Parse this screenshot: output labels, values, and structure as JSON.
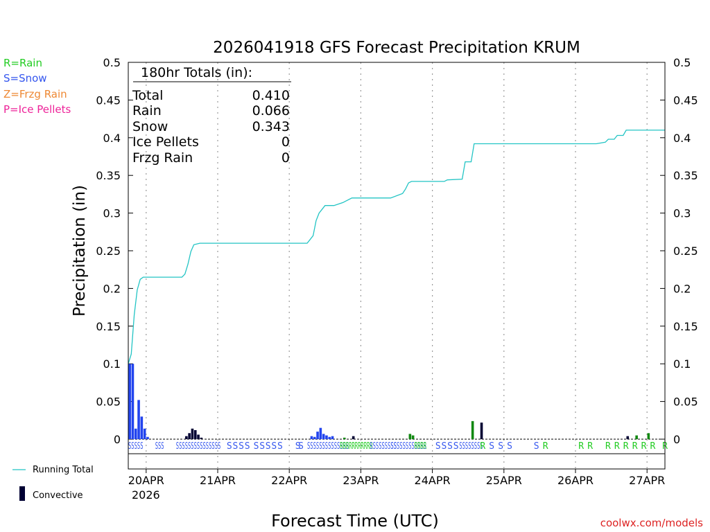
{
  "chart_data": {
    "type": "bar",
    "title": "2026041918 GFS Forecast Precipitation KRUM",
    "xlabel": "Forecast Time (UTC)",
    "ylabel": "Precipitation (in)",
    "ylim": [
      0,
      0.5
    ],
    "x_range_hours": [
      0,
      180
    ],
    "yticks": [
      "0",
      "0.05",
      "0.1",
      "0.15",
      "0.2",
      "0.25",
      "0.3",
      "0.35",
      "0.4",
      "0.45",
      "0.5"
    ],
    "xticks": [
      {
        "hour": 6,
        "label": "20APR"
      },
      {
        "hour": 30,
        "label": "21APR"
      },
      {
        "hour": 54,
        "label": "22APR"
      },
      {
        "hour": 78,
        "label": "23APR"
      },
      {
        "hour": 102,
        "label": "24APR"
      },
      {
        "hour": 126,
        "label": "25APR"
      },
      {
        "hour": 150,
        "label": "26APR"
      },
      {
        "hour": 174,
        "label": "27APR"
      }
    ],
    "year_label": "2026",
    "totals": {
      "header": "180hr Totals (in):",
      "rows": [
        {
          "label": "Total",
          "value": "0.410"
        },
        {
          "label": "Rain",
          "value": "0.066"
        },
        {
          "label": "Snow",
          "value": "0.343"
        },
        {
          "label": "Ice Pellets",
          "value": "0"
        },
        {
          "label": "Frzg Rain",
          "value": "0"
        }
      ]
    },
    "precip_legend": [
      {
        "text": "R=Rain",
        "color": "#22cc22"
      },
      {
        "text": "S=Snow",
        "color": "#3355ee"
      },
      {
        "text": "Z=Frzg Rain",
        "color": "#ee8833"
      },
      {
        "text": "P=Ice Pellets",
        "color": "#ee2299"
      }
    ],
    "series_legend": {
      "running_total": "Running Total",
      "convective": "Convective"
    },
    "credit": "coolwx.com/models",
    "colors": {
      "running": "#22c4c4",
      "snow": "#2244ee",
      "rain": "#118811",
      "convective": "#000033",
      "rain_label": "#22cc22",
      "snow_label": "#3355ee"
    },
    "running_total": [
      [
        0,
        0.1
      ],
      [
        1,
        0.113
      ],
      [
        2,
        0.165
      ],
      [
        3,
        0.198
      ],
      [
        4,
        0.212
      ],
      [
        5,
        0.215
      ],
      [
        18,
        0.215
      ],
      [
        19,
        0.219
      ],
      [
        20,
        0.232
      ],
      [
        21,
        0.249
      ],
      [
        22,
        0.258
      ],
      [
        24,
        0.26
      ],
      [
        60,
        0.26
      ],
      [
        61,
        0.265
      ],
      [
        62,
        0.27
      ],
      [
        63,
        0.29
      ],
      [
        64,
        0.3
      ],
      [
        65,
        0.305
      ],
      [
        66,
        0.31
      ],
      [
        69,
        0.31
      ],
      [
        72,
        0.314
      ],
      [
        73,
        0.316
      ],
      [
        75,
        0.32
      ],
      [
        88,
        0.32
      ],
      [
        92,
        0.326
      ],
      [
        93,
        0.332
      ],
      [
        94,
        0.34
      ],
      [
        95,
        0.342
      ],
      [
        106,
        0.342
      ],
      [
        107,
        0.344
      ],
      [
        112,
        0.345
      ],
      [
        113,
        0.368
      ],
      [
        115,
        0.368
      ],
      [
        116,
        0.392
      ],
      [
        157,
        0.392
      ],
      [
        160,
        0.394
      ],
      [
        161,
        0.398
      ],
      [
        163,
        0.398
      ],
      [
        164,
        0.403
      ],
      [
        166,
        0.403
      ],
      [
        167,
        0.41
      ],
      [
        180,
        0.41
      ]
    ],
    "bars": [
      {
        "h": 0.5,
        "v": 0.1,
        "k": "snow"
      },
      {
        "h": 1.5,
        "v": 0.1,
        "k": "snow"
      },
      {
        "h": 2.5,
        "v": 0.014,
        "k": "snow"
      },
      {
        "h": 3.5,
        "v": 0.052,
        "k": "snow"
      },
      {
        "h": 4.5,
        "v": 0.03,
        "k": "snow"
      },
      {
        "h": 5.5,
        "v": 0.014,
        "k": "snow"
      },
      {
        "h": 6.5,
        "v": 0.003,
        "k": "snow"
      },
      {
        "h": 19.5,
        "v": 0.004,
        "k": "conv"
      },
      {
        "h": 20.5,
        "v": 0.008,
        "k": "conv"
      },
      {
        "h": 21.5,
        "v": 0.014,
        "k": "conv"
      },
      {
        "h": 22.5,
        "v": 0.012,
        "k": "conv"
      },
      {
        "h": 23.5,
        "v": 0.006,
        "k": "conv"
      },
      {
        "h": 24.5,
        "v": 0.002,
        "k": "conv"
      },
      {
        "h": 61.5,
        "v": 0.004,
        "k": "snow"
      },
      {
        "h": 62.5,
        "v": 0.003,
        "k": "snow"
      },
      {
        "h": 63.5,
        "v": 0.01,
        "k": "snow"
      },
      {
        "h": 64.5,
        "v": 0.015,
        "k": "snow"
      },
      {
        "h": 65.5,
        "v": 0.007,
        "k": "snow"
      },
      {
        "h": 66.5,
        "v": 0.005,
        "k": "snow"
      },
      {
        "h": 67.5,
        "v": 0.003,
        "k": "snow"
      },
      {
        "h": 68.5,
        "v": 0.004,
        "k": "snow"
      },
      {
        "h": 72.5,
        "v": 0.002,
        "k": "rain"
      },
      {
        "h": 75.5,
        "v": 0.004,
        "k": "conv"
      },
      {
        "h": 94.5,
        "v": 0.007,
        "k": "rain"
      },
      {
        "h": 95.5,
        "v": 0.005,
        "k": "rain"
      },
      {
        "h": 115.5,
        "v": 0.024,
        "k": "rain"
      },
      {
        "h": 118.5,
        "v": 0.022,
        "k": "conv"
      },
      {
        "h": 167.5,
        "v": 0.004,
        "k": "conv"
      },
      {
        "h": 170.5,
        "v": 0.005,
        "k": "rain"
      },
      {
        "h": 174.5,
        "v": 0.008,
        "k": "rain"
      }
    ],
    "ptype_marks": [
      {
        "h": 0,
        "t": "SSSSS",
        "k": "S"
      },
      {
        "h": 9,
        "t": "SSS",
        "k": "S"
      },
      {
        "h": 16,
        "t": "SSSSSSSSSSSSSSS",
        "k": "S"
      },
      {
        "h": 33,
        "t": "S",
        "k": "S"
      },
      {
        "h": 35,
        "t": "S",
        "k": "S"
      },
      {
        "h": 37,
        "t": "S",
        "k": "S"
      },
      {
        "h": 39,
        "t": "S",
        "k": "S"
      },
      {
        "h": 42,
        "t": "S",
        "k": "S"
      },
      {
        "h": 44,
        "t": "S",
        "k": "S"
      },
      {
        "h": 46,
        "t": "S",
        "k": "S"
      },
      {
        "h": 48,
        "t": "S",
        "k": "S"
      },
      {
        "h": 50,
        "t": "S",
        "k": "S"
      },
      {
        "h": 56,
        "t": "S",
        "k": "S"
      },
      {
        "h": 57,
        "t": "S",
        "k": "S"
      },
      {
        "h": 60,
        "t": "SSSSSSSSSSSSSS",
        "k": "S"
      },
      {
        "h": 71,
        "t": "RRRRRRRRRRR",
        "k": "R"
      },
      {
        "h": 81,
        "t": "SSSSSSSSS",
        "k": "S"
      },
      {
        "h": 88,
        "t": "SSSSSSSSSSSS",
        "k": "S"
      },
      {
        "h": 96,
        "t": "RRRR",
        "k": "R"
      },
      {
        "h": 103,
        "t": "S",
        "k": "S"
      },
      {
        "h": 105,
        "t": "S",
        "k": "S"
      },
      {
        "h": 107,
        "t": "S",
        "k": "S"
      },
      {
        "h": 109,
        "t": "S",
        "k": "S"
      },
      {
        "h": 111,
        "t": "SSSSSSSS",
        "k": "S"
      },
      {
        "h": 118,
        "t": "R",
        "k": "R"
      },
      {
        "h": 121,
        "t": "S",
        "k": "S"
      },
      {
        "h": 124,
        "t": "S",
        "k": "S"
      },
      {
        "h": 127,
        "t": "S",
        "k": "S"
      },
      {
        "h": 136,
        "t": "S",
        "k": "S"
      },
      {
        "h": 139,
        "t": "R",
        "k": "R"
      },
      {
        "h": 151,
        "t": "R",
        "k": "R"
      },
      {
        "h": 154,
        "t": "R",
        "k": "R"
      },
      {
        "h": 160,
        "t": "R",
        "k": "R"
      },
      {
        "h": 163,
        "t": "R",
        "k": "R"
      },
      {
        "h": 166,
        "t": "R",
        "k": "R"
      },
      {
        "h": 169,
        "t": "R",
        "k": "R"
      },
      {
        "h": 172,
        "t": "R",
        "k": "R"
      },
      {
        "h": 175,
        "t": "R",
        "k": "R"
      },
      {
        "h": 180,
        "t": "R",
        "k": "R"
      }
    ]
  }
}
